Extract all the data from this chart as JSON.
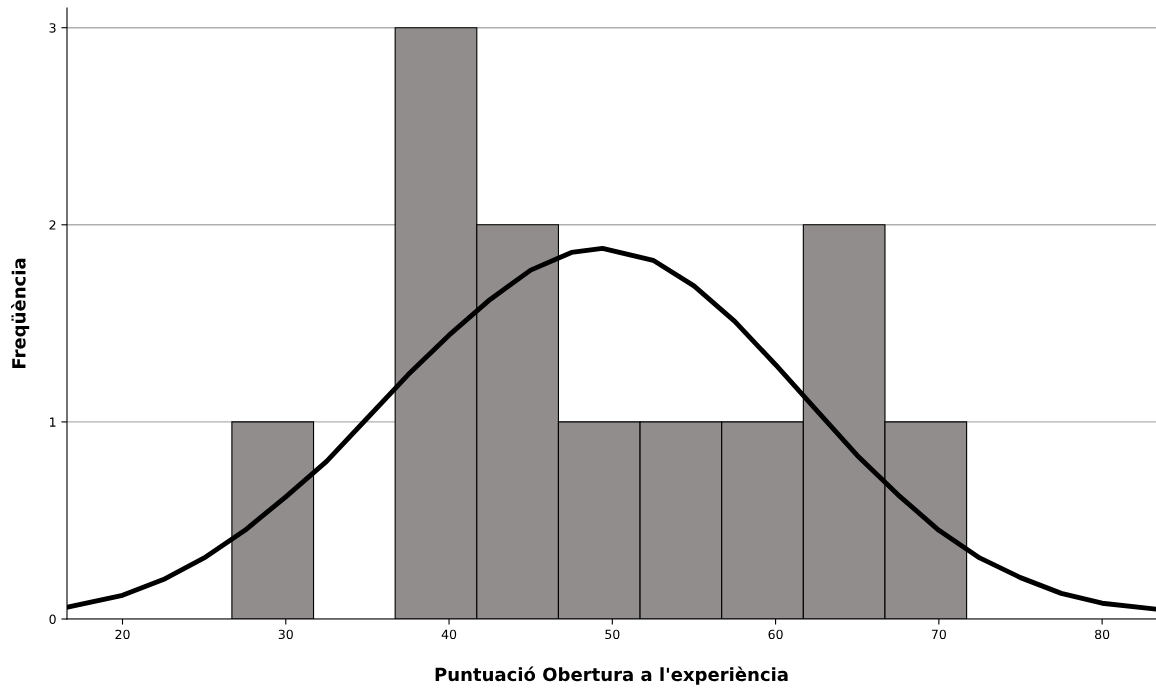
{
  "chart_data": {
    "type": "histogram",
    "xlabel": "Puntuació Obertura a l'experiència",
    "ylabel": "Freqüència",
    "series": [
      {
        "bins": [
          26.7,
          31.7,
          36.7,
          41.7,
          46.7,
          51.7,
          56.7,
          61.7,
          66.7,
          71.7
        ],
        "values": [
          1,
          0,
          3,
          2,
          1,
          1,
          1,
          2,
          1
        ],
        "color": "#918d8c"
      },
      {
        "type": "line",
        "x": [
          16.6,
          20,
          22.5,
          25,
          27.5,
          30,
          32.5,
          35,
          37.5,
          40,
          42.5,
          45,
          47.5,
          49.4,
          52.5,
          55,
          57.5,
          60,
          62.5,
          65,
          67.5,
          70,
          72.5,
          75,
          77.5,
          80,
          83.3
        ],
        "values": [
          0.06,
          0.12,
          0.2,
          0.31,
          0.45,
          0.62,
          0.8,
          1.02,
          1.24,
          1.44,
          1.62,
          1.77,
          1.86,
          1.88,
          1.82,
          1.69,
          1.51,
          1.29,
          1.06,
          0.83,
          0.63,
          0.45,
          0.31,
          0.21,
          0.13,
          0.08,
          0.05
        ],
        "color": "#000000"
      }
    ],
    "xlim": [
      16.6,
      83.3
    ],
    "ylim": [
      0,
      3.1
    ],
    "xticks": [
      20,
      30,
      40,
      50,
      60,
      70,
      80
    ],
    "yticks": [
      0,
      1,
      2,
      3
    ],
    "grid": "y",
    "legend": false
  }
}
